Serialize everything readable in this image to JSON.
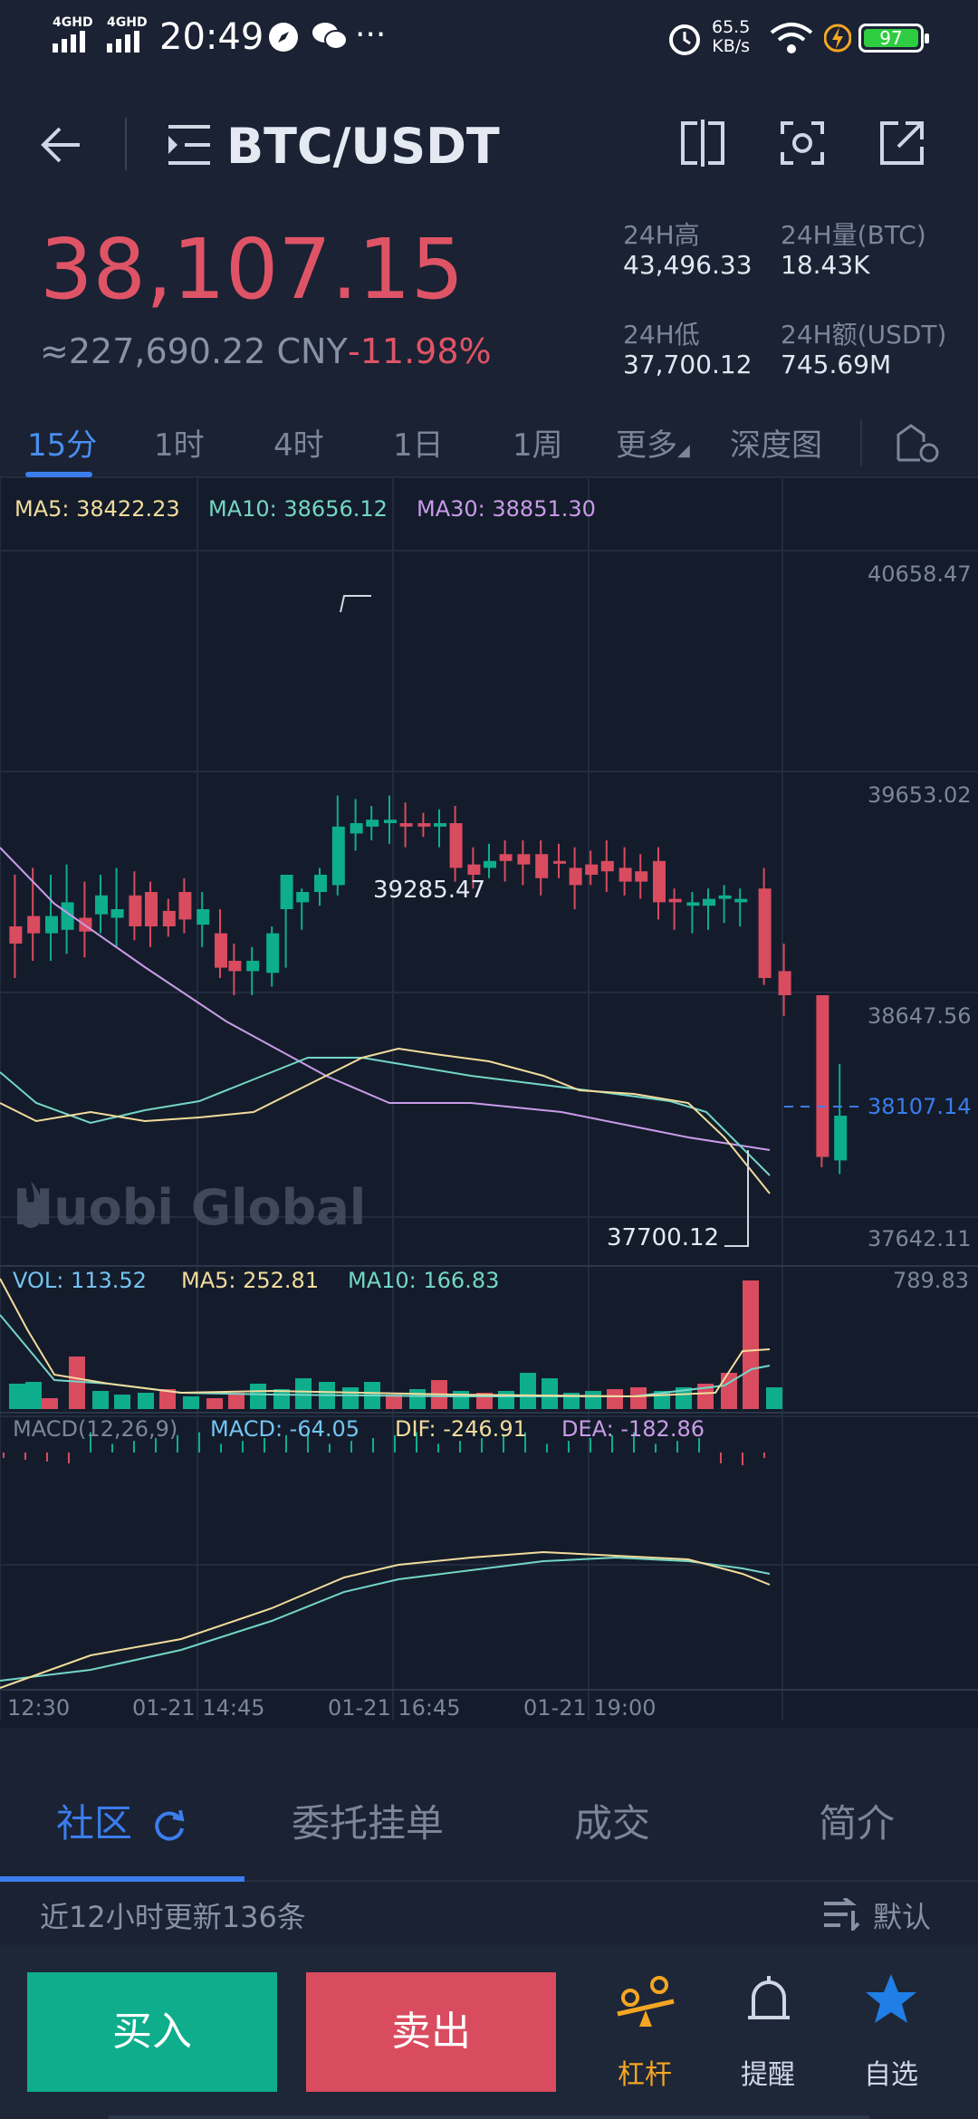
{
  "status_bar": {
    "network_1": "4GHD",
    "network_2": "4GHD",
    "time": "20:49",
    "speed_value": "65.5",
    "speed_unit": "KB/s",
    "battery": "97"
  },
  "header": {
    "pair": "BTC/USDT",
    "last_price": "38,107.15",
    "cny_price": "≈227,690.22 CNY",
    "change_pct": "-11.98%",
    "stats": {
      "high_label": "24H高",
      "high_value": "43,496.33",
      "vol_label": "24H量(BTC)",
      "vol_value": "18.43K",
      "low_label": "24H低",
      "low_value": "37,700.12",
      "amount_label": "24H额(USDT)",
      "amount_value": "745.69M"
    }
  },
  "period_tabs": [
    "15分",
    "1时",
    "4时",
    "1日",
    "1周",
    "更多",
    "深度图"
  ],
  "chart": {
    "ma": {
      "ma5": "MA5: 38422.23",
      "ma10": "MA10: 38656.12",
      "ma30": "MA30: 38851.30"
    },
    "price_axis": [
      "40658.47",
      "39653.02",
      "38647.56",
      "37642.11"
    ],
    "current_price_tag": "38107.14",
    "high_marker": "39285.47",
    "low_marker": "37700.12",
    "watermark": "Huobi Global",
    "vol": {
      "vol": "VOL: 113.52",
      "ma5": "MA5: 252.81",
      "ma10": "MA10: 166.83",
      "max": "789.83"
    },
    "macd": {
      "label": "MACD(12,26,9)",
      "macd": "MACD: -64.05",
      "dif": "DIF: -246.91",
      "dea": "DEA: -182.86"
    },
    "time_axis": [
      "12:30",
      "01-21 14:45",
      "01-21 16:45",
      "01-21 19:00"
    ],
    "colors": {
      "up": "#0ead8c",
      "down": "#d94b5f",
      "ma5": "#f2dc9c",
      "ma10": "#74d6c6",
      "ma30": "#c99be8"
    }
  },
  "section_tabs": [
    "社区",
    "委托挂单",
    "成交",
    "简介"
  ],
  "update_text": "近12小时更新136条",
  "sort_label": "默认",
  "bottom": {
    "buy": "买入",
    "sell": "卖出",
    "nav": [
      "杠杆",
      "提醒",
      "自选"
    ]
  },
  "icons": [
    "back-arrow-icon",
    "list-icon",
    "split-view-icon",
    "screenshot-icon",
    "share-icon",
    "drawing-tool-icon",
    "refresh-icon",
    "sort-icon",
    "lever-icon",
    "bell-icon",
    "star-icon",
    "alarm-icon",
    "wifi-icon",
    "charging-icon"
  ]
}
